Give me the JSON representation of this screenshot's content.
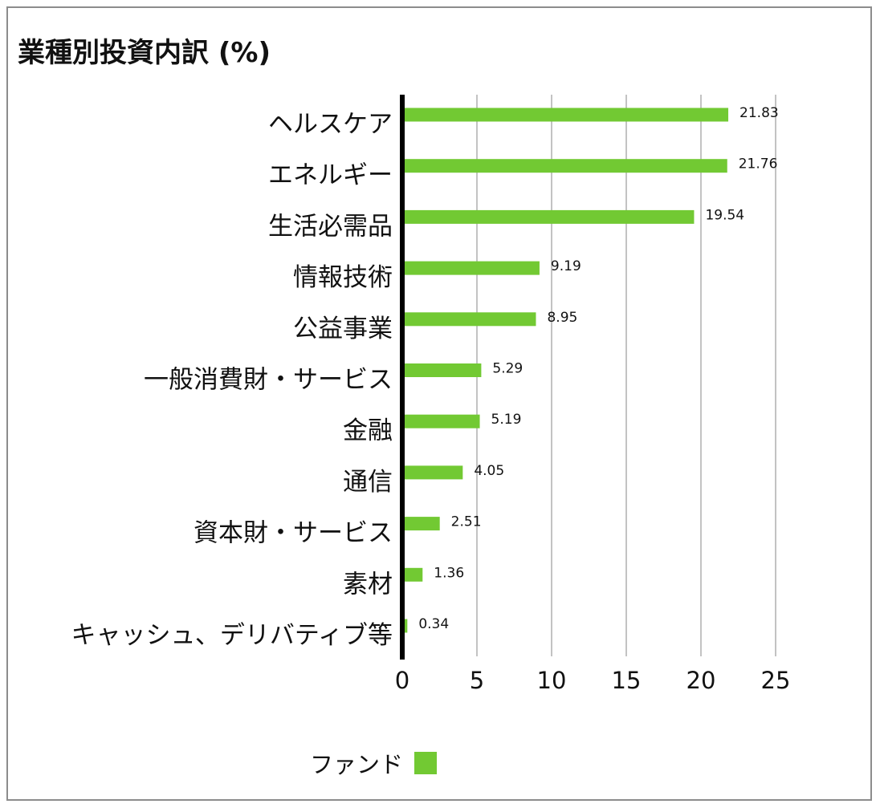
{
  "chart_data": {
    "type": "bar",
    "orientation": "horizontal",
    "title": "業種別投資内訳 (%)",
    "categories": [
      "ヘルスケア",
      "エネルギー",
      "生活必需品",
      "情報技術",
      "公益事業",
      "一般消費財・サービス",
      "金融",
      "通信",
      "資本財・サービス",
      "素材",
      "キャッシュ、デリバティブ等"
    ],
    "series": [
      {
        "name": "ファンド",
        "color": "#72c933",
        "values": [
          21.83,
          21.76,
          19.54,
          9.19,
          8.95,
          5.29,
          5.19,
          4.05,
          2.51,
          1.36,
          0.34
        ],
        "value_labels": [
          "21.83",
          "21.76",
          "19.54",
          "9.19",
          "8.95",
          "5.29",
          "5.19",
          "4.05",
          "2.51",
          "1.36",
          "0.34"
        ]
      }
    ],
    "xlim": [
      0,
      25
    ],
    "xticks": [
      "0",
      "5",
      "10",
      "15",
      "20",
      "25"
    ],
    "grid": "vertical",
    "legend_position": "bottom",
    "xlabel": "",
    "ylabel": ""
  }
}
